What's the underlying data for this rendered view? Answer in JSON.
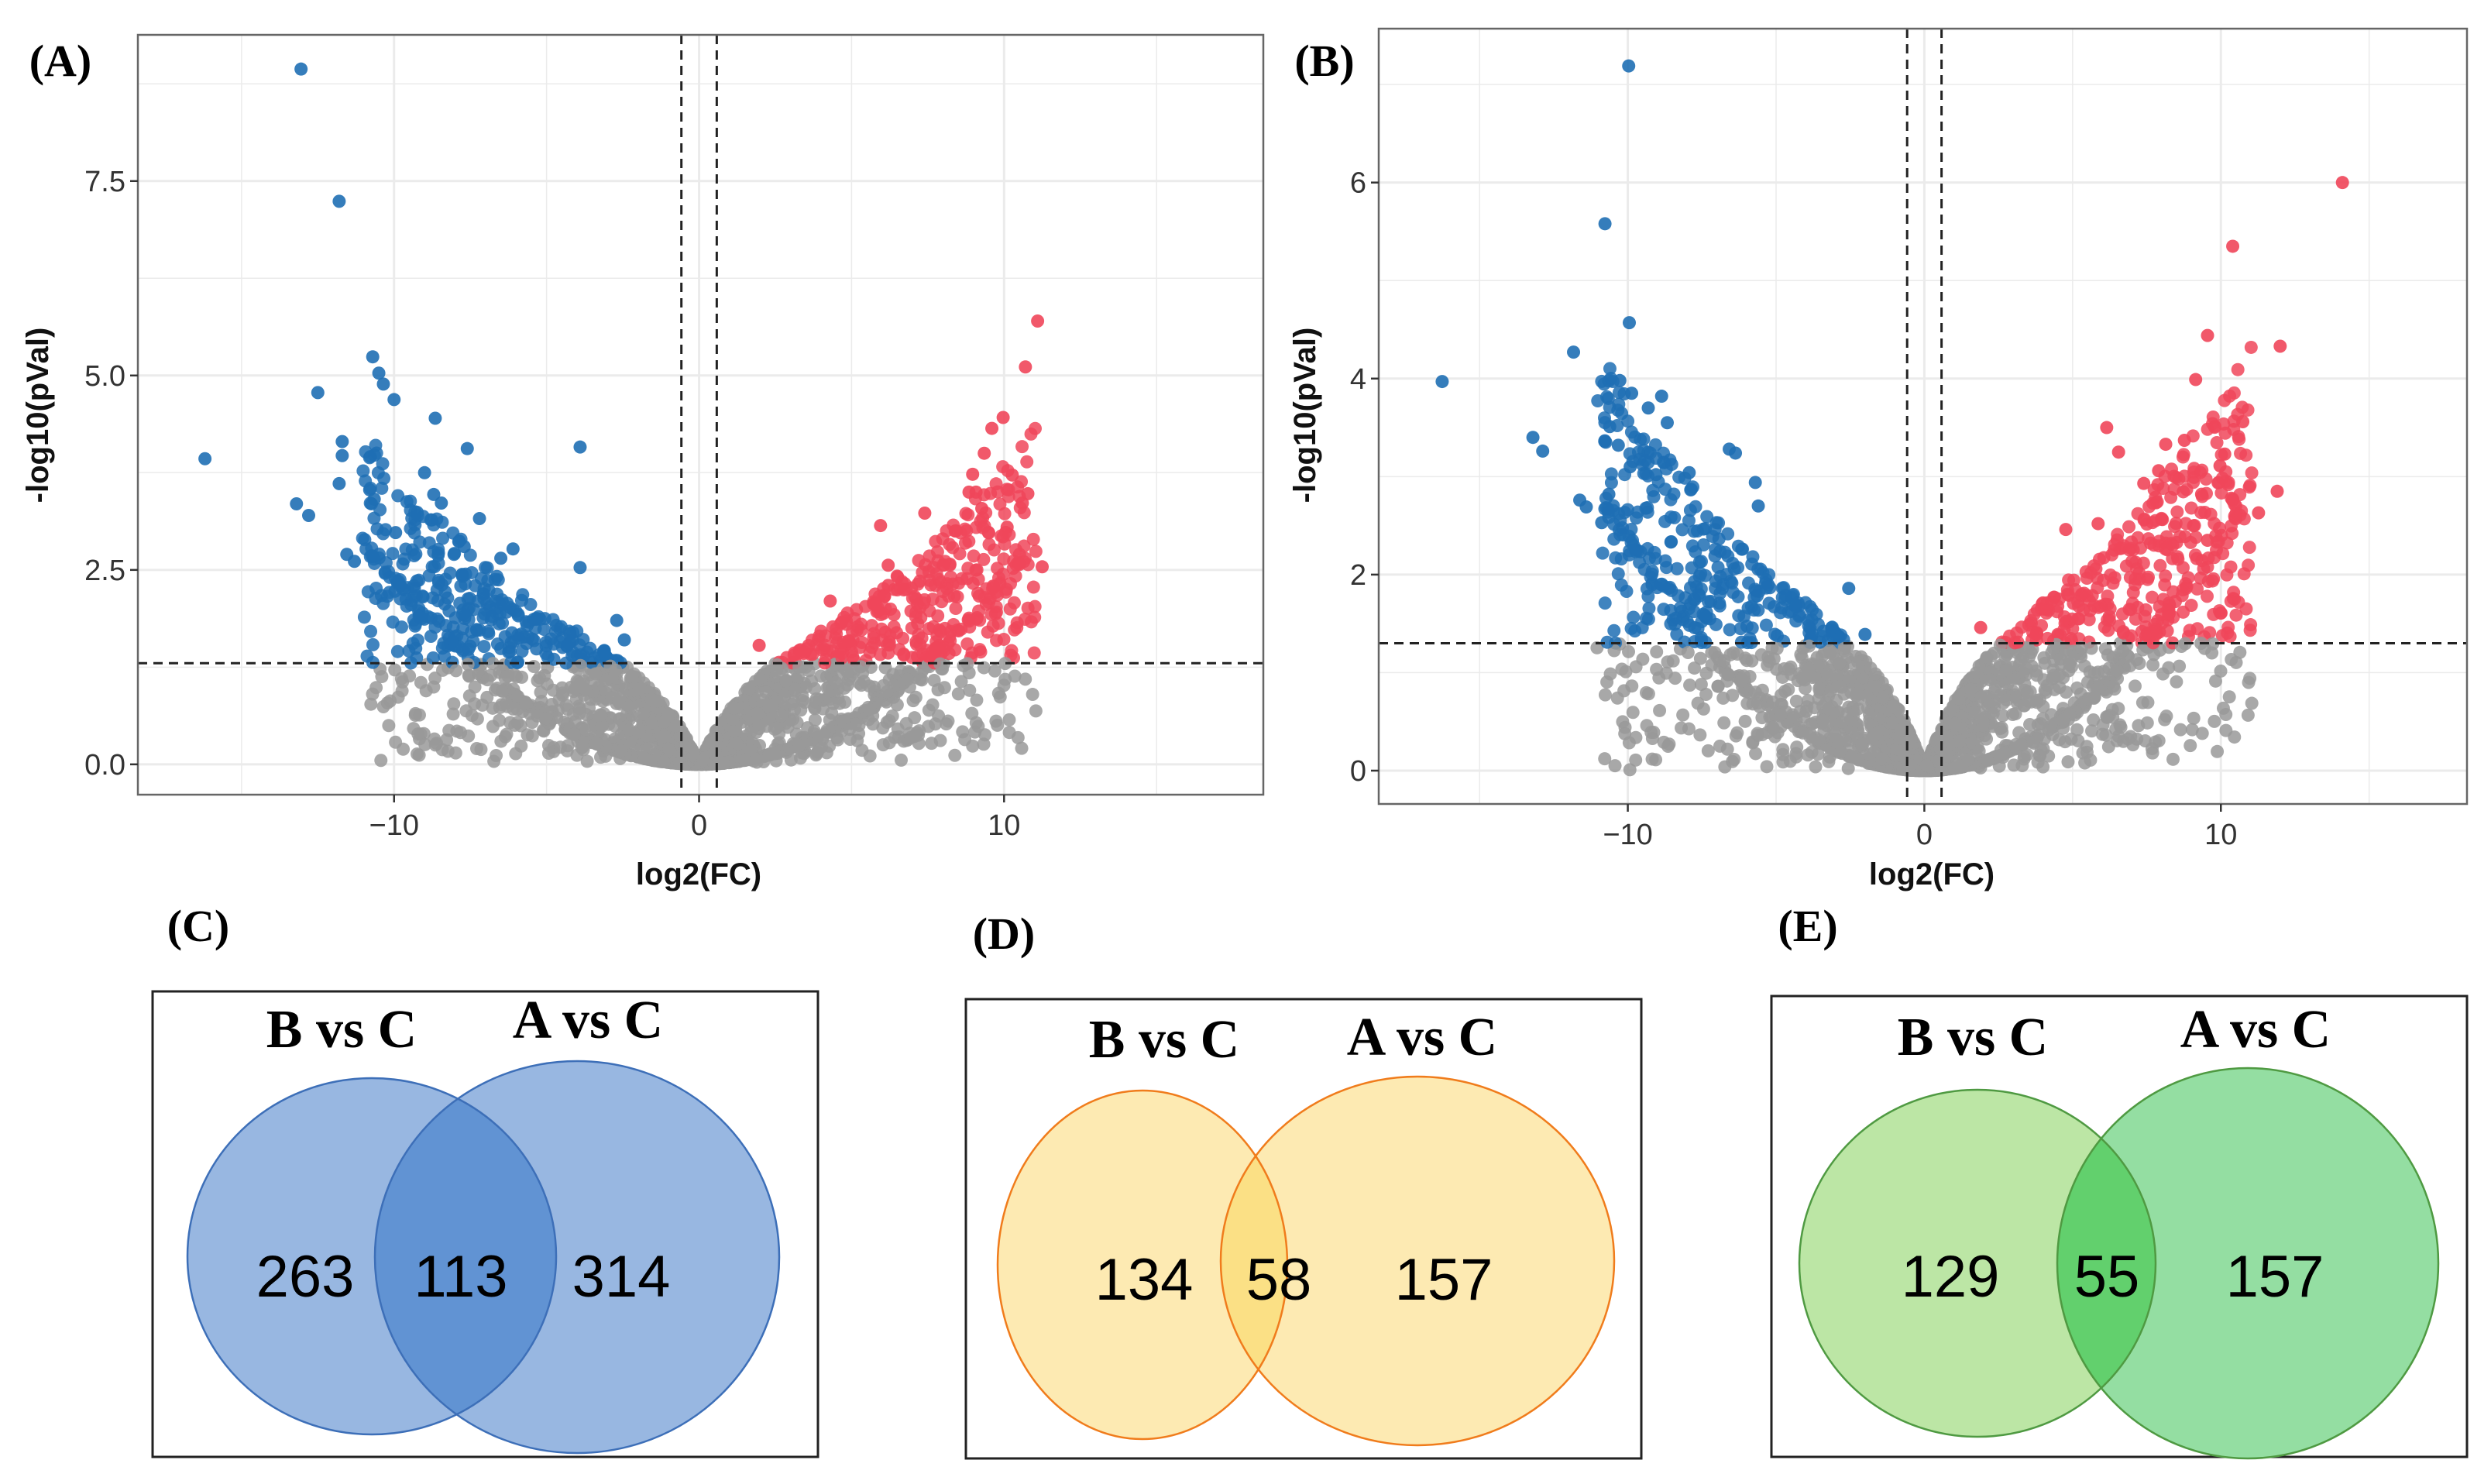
{
  "chart_data": [
    {
      "panel_label": "(A)",
      "type": "scatter",
      "xlabel": "log2(FC)",
      "ylabel": "-log10(pVal)",
      "xlim": [
        -18.4,
        18.5
      ],
      "ylim": [
        -0.39,
        9.38
      ],
      "xticks": [
        -10,
        0,
        10
      ],
      "xtick_labels": [
        "−10",
        "0",
        "10"
      ],
      "yticks": [
        0,
        2.5,
        5,
        7.5
      ],
      "ytick_labels": [
        "0.0",
        "2.5",
        "5.0",
        "7.5"
      ],
      "grid": true,
      "thresholds": {
        "fc": 0.58,
        "p": 1.3
      },
      "colors": {
        "down": "#1f6fb4",
        "up": "#f0465a",
        "ns": "#999999"
      },
      "background_cloud": {
        "seed": 11,
        "count": 2200
      },
      "down_points": [
        [
          -13.05,
          8.94
        ],
        [
          -11.8,
          7.24
        ],
        [
          -16.2,
          3.93
        ],
        [
          -12.5,
          4.78
        ],
        [
          -10.7,
          5.24
        ],
        [
          -10.5,
          5.03
        ],
        [
          -10.35,
          4.89
        ],
        [
          -10.0,
          4.69
        ],
        [
          -8.65,
          4.45
        ],
        [
          -7.6,
          4.06
        ],
        [
          -3.9,
          4.08
        ],
        [
          -3.9,
          2.53
        ],
        [
          -11.7,
          4.15
        ],
        [
          -11.7,
          3.97
        ],
        [
          -11.8,
          3.61
        ],
        [
          -10.8,
          3.53
        ],
        [
          -10.65,
          3.41
        ],
        [
          -13.2,
          3.35
        ],
        [
          -12.8,
          3.2
        ],
        [
          -9.0,
          3.75
        ],
        [
          -8.7,
          3.47
        ],
        [
          -8.45,
          3.36
        ],
        [
          -7.2,
          3.16
        ],
        [
          -11.55,
          2.7
        ],
        [
          -11.3,
          2.61
        ],
        [
          -9.95,
          2.98
        ],
        [
          -7.7,
          2.8
        ],
        [
          -6.1,
          2.77
        ],
        [
          -6.5,
          2.65
        ],
        [
          -2.7,
          1.85
        ],
        [
          -2.45,
          1.6
        ]
      ],
      "up_points": [
        [
          11.1,
          5.7
        ],
        [
          10.7,
          5.11
        ],
        [
          9.97,
          4.46
        ],
        [
          9.6,
          4.32
        ],
        [
          9.35,
          4.0
        ],
        [
          8.97,
          3.73
        ],
        [
          10.27,
          3.72
        ],
        [
          8.85,
          3.5
        ],
        [
          9.08,
          3.5
        ],
        [
          10.78,
          3.48
        ],
        [
          10.6,
          3.36
        ],
        [
          7.4,
          3.23
        ],
        [
          9.27,
          3.29
        ],
        [
          5.95,
          3.07
        ],
        [
          10.1,
          3.05
        ],
        [
          8.4,
          3.0
        ],
        [
          11.25,
          2.54
        ],
        [
          6.2,
          2.56
        ],
        [
          6.2,
          2.3
        ],
        [
          4.3,
          2.1
        ],
        [
          1.97,
          1.53
        ]
      ]
    },
    {
      "panel_label": "(B)",
      "type": "scatter",
      "xlabel": "log2(FC)",
      "ylabel": "-log10(pVal)",
      "xlim": [
        -18.4,
        18.3
      ],
      "ylim": [
        -0.34,
        7.57
      ],
      "xticks": [
        -10,
        0,
        10
      ],
      "xtick_labels": [
        "−10",
        "0",
        "10"
      ],
      "yticks": [
        0,
        2,
        4,
        6
      ],
      "ytick_labels": [
        "0",
        "2",
        "4",
        "6"
      ],
      "grid": true,
      "thresholds": {
        "fc": 0.58,
        "p": 1.3
      },
      "colors": {
        "down": "#1f6fb4",
        "up": "#f0465a",
        "ns": "#999999"
      },
      "background_cloud": {
        "seed": 29,
        "count": 2200
      },
      "down_points": [
        [
          -9.97,
          7.19
        ],
        [
          -10.77,
          5.58
        ],
        [
          -9.95,
          4.57
        ],
        [
          -11.83,
          4.27
        ],
        [
          -16.26,
          3.97
        ],
        [
          -10.27,
          3.98
        ],
        [
          -9.87,
          3.85
        ],
        [
          -8.86,
          3.82
        ],
        [
          -9.31,
          3.7
        ],
        [
          -8.67,
          3.55
        ],
        [
          -10.61,
          3.51
        ],
        [
          -13.2,
          3.4
        ],
        [
          -12.87,
          3.26
        ],
        [
          -10.32,
          3.32
        ],
        [
          -6.58,
          3.28
        ],
        [
          -6.37,
          3.24
        ],
        [
          -9.92,
          3.1
        ],
        [
          -9.05,
          3.02
        ],
        [
          -7.93,
          3.04
        ],
        [
          -5.7,
          2.94
        ],
        [
          -11.62,
          2.76
        ],
        [
          -10.64,
          2.82
        ],
        [
          -11.4,
          2.69
        ],
        [
          -5.6,
          2.7
        ],
        [
          -10.88,
          2.53
        ],
        [
          -2.55,
          1.86
        ],
        [
          -2.0,
          1.39
        ]
      ],
      "up_points": [
        [
          14.1,
          6.0
        ],
        [
          10.4,
          5.35
        ],
        [
          9.55,
          4.44
        ],
        [
          12.0,
          4.33
        ],
        [
          9.15,
          3.99
        ],
        [
          10.74,
          3.56
        ],
        [
          6.15,
          3.5
        ],
        [
          8.77,
          3.37
        ],
        [
          8.14,
          3.33
        ],
        [
          6.55,
          3.25
        ],
        [
          10.13,
          3.23
        ],
        [
          9.97,
          3.11
        ],
        [
          7.9,
          3.06
        ],
        [
          7.4,
          2.93
        ],
        [
          11.9,
          2.85
        ],
        [
          9.35,
          2.82
        ],
        [
          10.4,
          2.77
        ],
        [
          11.27,
          2.63
        ],
        [
          5.86,
          2.52
        ],
        [
          4.77,
          2.46
        ],
        [
          9.55,
          2.35
        ],
        [
          1.9,
          1.46
        ]
      ]
    }
  ],
  "venn": [
    {
      "panel_label": "(C)",
      "left_label": "B vs C",
      "right_label": "A vs C",
      "left_only": "263",
      "overlap": "113",
      "right_only": "314",
      "colors": {
        "left": "#98b7e1",
        "right": "#98b7e1",
        "overlap": "#6193d3",
        "stroke": "#3d6fb8"
      }
    },
    {
      "panel_label": "(D)",
      "left_label": "B vs C",
      "right_label": "A vs C",
      "left_only": "134",
      "overlap": "58",
      "right_only": "157",
      "colors": {
        "left": "#fdeab2",
        "right": "#fdeab2",
        "overlap": "#fbe085",
        "stroke": "#f07c1c"
      }
    },
    {
      "panel_label": "(E)",
      "left_label": "B vs C",
      "right_label": "A vs C",
      "left_only": "129",
      "overlap": "55",
      "right_only": "157",
      "colors": {
        "left": "#bce6a5",
        "right": "#94dea2",
        "overlap": "#62d06d",
        "stroke": "#4f9a42"
      }
    }
  ]
}
